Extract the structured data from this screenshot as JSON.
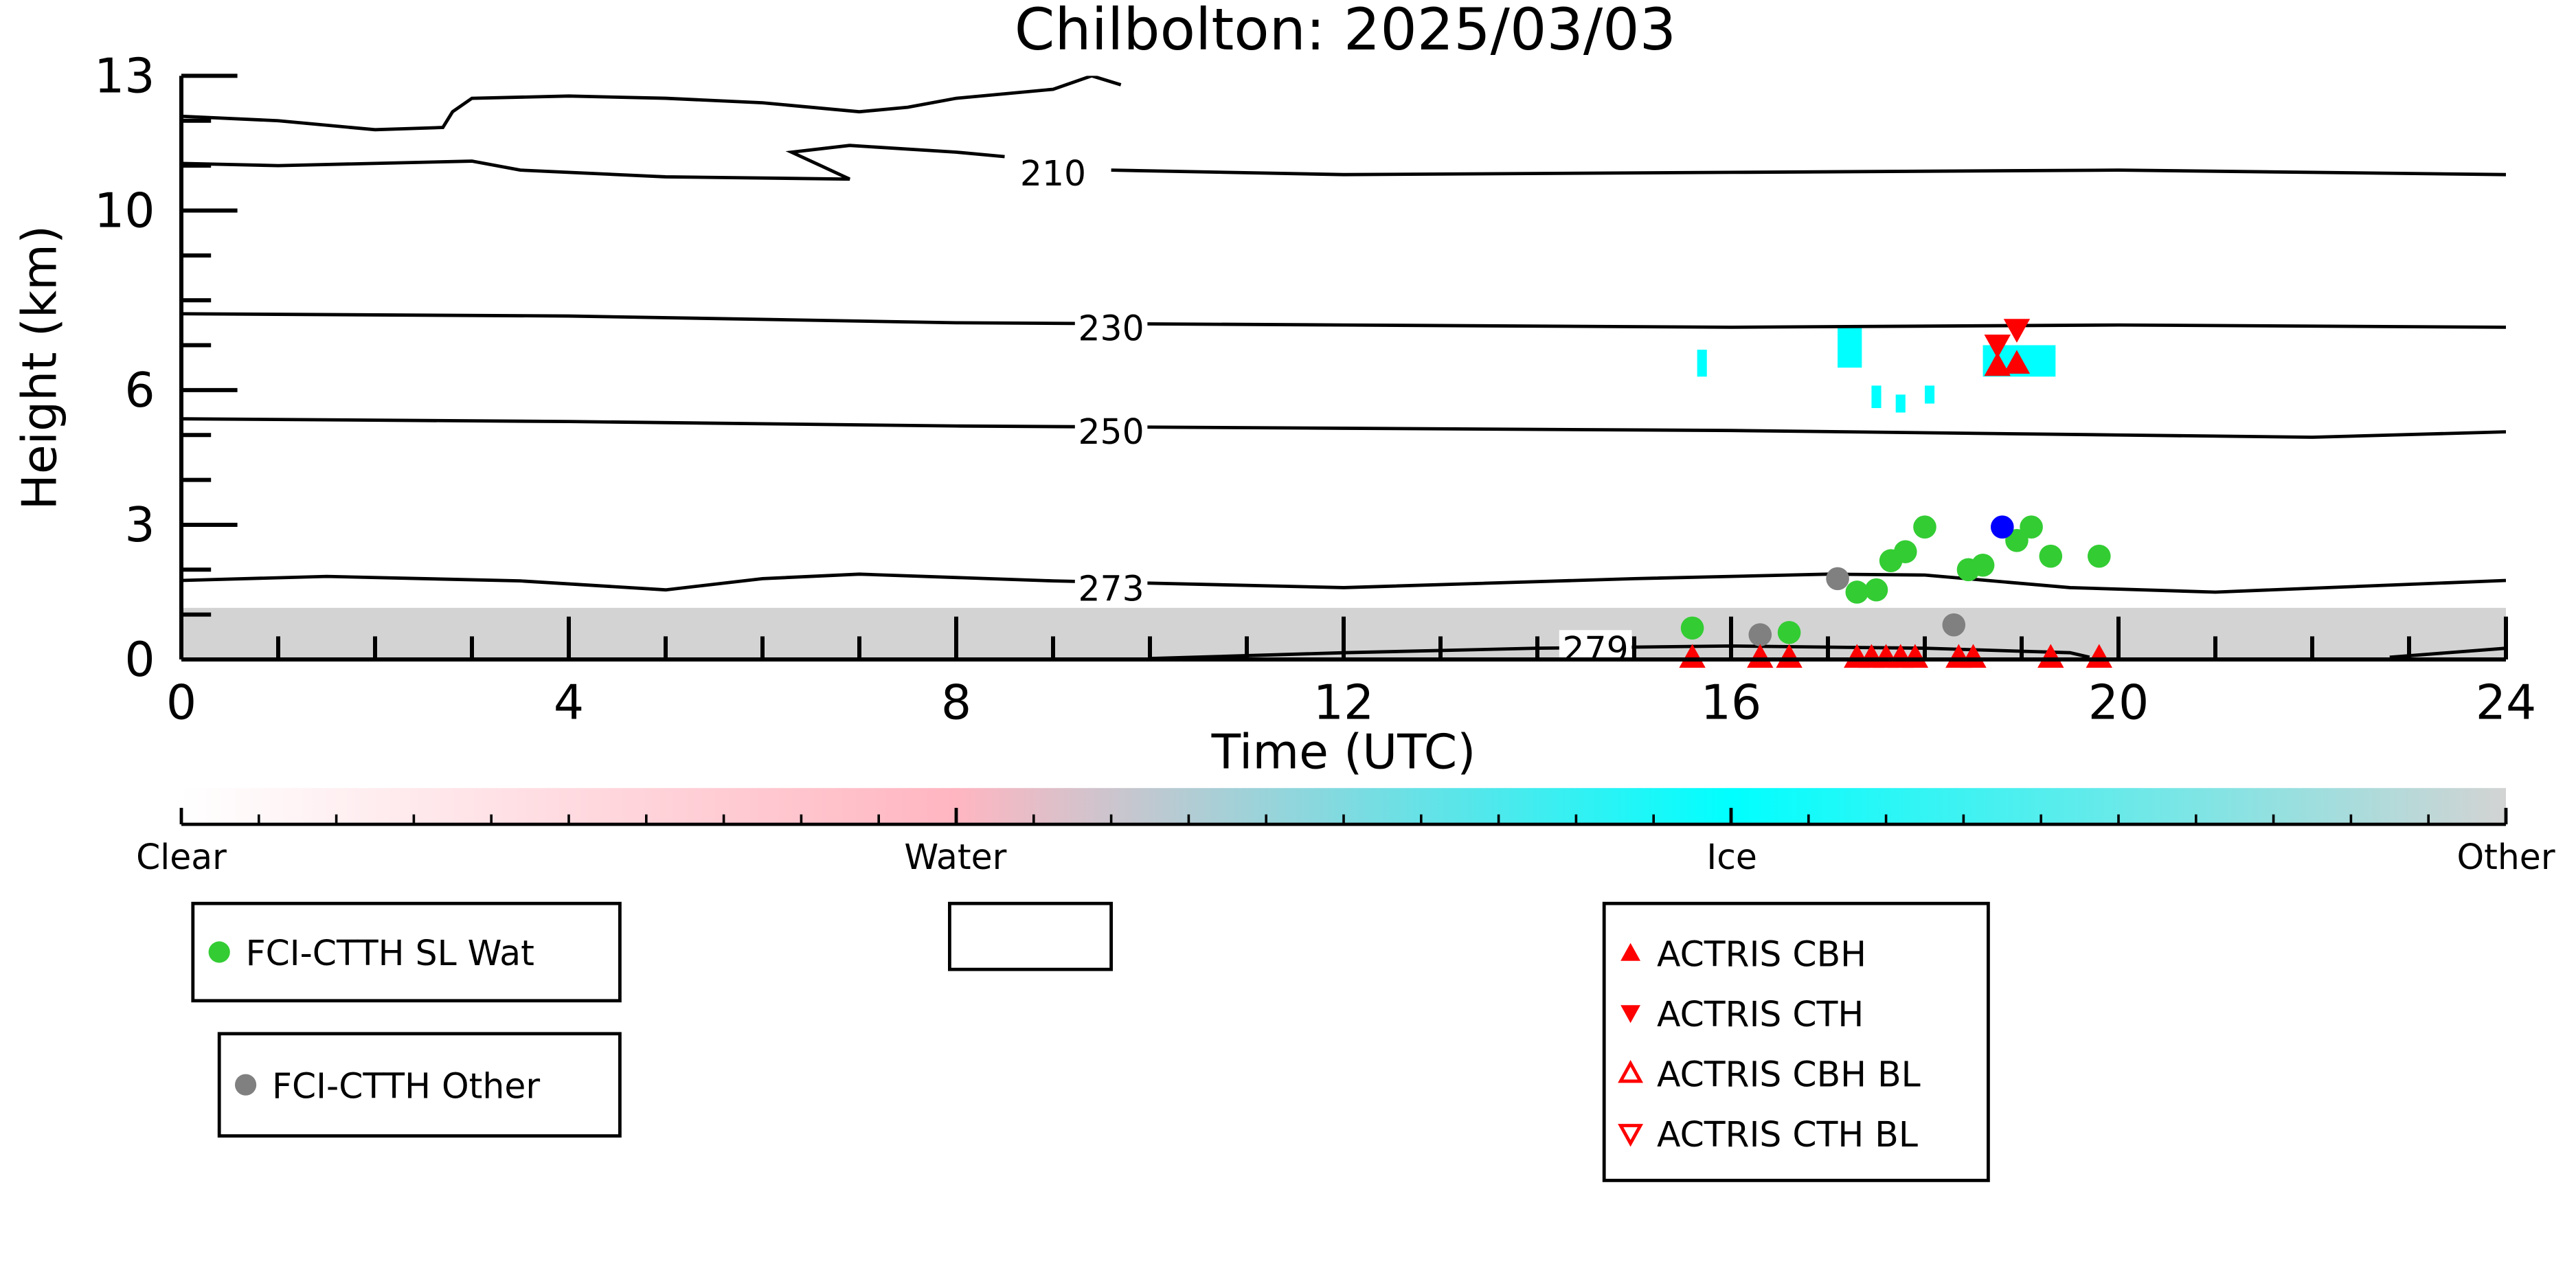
{
  "chart_data": {
    "type": "scatter",
    "title": "Chilbolton: 2025/03/03",
    "xlabel": "Time (UTC)",
    "ylabel": "Height (km)",
    "xlim": [
      0,
      24
    ],
    "ylim": [
      0,
      13
    ],
    "x_ticks": [
      0,
      4,
      8,
      12,
      16,
      20,
      24
    ],
    "x_tick_labels": [
      "0",
      "4",
      "8",
      "12",
      "16",
      "20",
      "24"
    ],
    "y_ticks": [
      0,
      3,
      6,
      10,
      13
    ],
    "y_tick_labels": [
      "0",
      "3",
      "6",
      "10",
      "13"
    ],
    "grid": false,
    "colors": {
      "sl_wat": "#33cc33",
      "other": "#808080",
      "blue": "#0000ff",
      "actris": "#ff0000",
      "ice": "#00ffff",
      "water": "#ffb6c1",
      "other_cloud": "#d3d3d3"
    },
    "contours": [
      {
        "label": "210",
        "label_at": [
          9.0,
          10.85
        ],
        "points": [
          [
            0,
            12.1
          ],
          [
            1,
            12.0
          ],
          [
            2,
            11.8
          ],
          [
            2.7,
            11.85
          ],
          [
            2.8,
            12.2
          ],
          [
            3,
            12.5
          ],
          [
            4,
            12.55
          ],
          [
            5,
            12.5
          ],
          [
            6,
            12.4
          ],
          [
            7,
            12.2
          ],
          [
            7.5,
            12.3
          ],
          [
            8,
            12.5
          ],
          [
            9,
            12.7
          ],
          [
            9.4,
            13.0
          ],
          [
            9.7,
            12.8
          ]
        ]
      },
      {
        "label": "",
        "label_at": null,
        "points": [
          [
            0,
            11.05
          ],
          [
            1,
            11.0
          ],
          [
            3,
            11.1
          ],
          [
            3.5,
            10.9
          ],
          [
            5,
            10.75
          ],
          [
            6.9,
            10.7
          ],
          [
            6.6,
            11.0
          ],
          [
            6.3,
            11.3
          ],
          [
            6.9,
            11.45
          ],
          [
            8,
            11.3
          ],
          [
            8.5,
            11.2
          ]
        ]
      },
      {
        "label": "",
        "label_at": null,
        "points": [
          [
            9.6,
            10.9
          ],
          [
            12,
            10.8
          ],
          [
            16,
            10.85
          ],
          [
            20,
            10.9
          ],
          [
            24,
            10.8
          ]
        ]
      },
      {
        "label": "230",
        "label_at": [
          9.6,
          7.4
        ],
        "points": [
          [
            0,
            7.7
          ],
          [
            4,
            7.65
          ],
          [
            8,
            7.5
          ],
          [
            12,
            7.45
          ],
          [
            16,
            7.4
          ],
          [
            20,
            7.45
          ],
          [
            24,
            7.4
          ]
        ]
      },
      {
        "label": "250",
        "label_at": [
          9.6,
          5.1
        ],
        "points": [
          [
            0,
            5.36
          ],
          [
            4,
            5.3
          ],
          [
            8,
            5.2
          ],
          [
            12,
            5.15
          ],
          [
            16,
            5.1
          ],
          [
            20,
            5.0
          ],
          [
            22,
            4.95
          ],
          [
            24,
            5.07
          ]
        ]
      },
      {
        "label": "273",
        "label_at": [
          9.6,
          1.6
        ],
        "points": [
          [
            0,
            1.76
          ],
          [
            1.5,
            1.85
          ],
          [
            3.5,
            1.75
          ],
          [
            5,
            1.55
          ],
          [
            6,
            1.8
          ],
          [
            7,
            1.9
          ],
          [
            9,
            1.75
          ],
          [
            12,
            1.6
          ],
          [
            15,
            1.8
          ],
          [
            17,
            1.9
          ],
          [
            18,
            1.88
          ],
          [
            19.5,
            1.6
          ],
          [
            21,
            1.5
          ],
          [
            24,
            1.76
          ]
        ]
      },
      {
        "label": "279",
        "label_at": [
          14.6,
          0.25
        ],
        "points": [
          [
            10,
            0.02
          ],
          [
            12,
            0.15
          ],
          [
            14,
            0.25
          ],
          [
            16,
            0.3
          ],
          [
            18,
            0.25
          ],
          [
            19.5,
            0.15
          ],
          [
            19.7,
            0.05
          ]
        ]
      },
      {
        "label": "",
        "label_at": null,
        "points": [
          [
            22.8,
            0.05
          ],
          [
            24,
            0.25
          ]
        ]
      }
    ],
    "cloud_regions": [
      {
        "phase": "Other",
        "t0": 0,
        "t1": 24,
        "h0": 0,
        "h1": 1.15
      },
      {
        "phase": "Ice",
        "t0": 15.65,
        "t1": 15.75,
        "h0": 6.3,
        "h1": 6.9
      },
      {
        "phase": "Ice",
        "t0": 17.1,
        "t1": 17.35,
        "h0": 6.5,
        "h1": 7.4
      },
      {
        "phase": "Ice",
        "t0": 17.45,
        "t1": 17.55,
        "h0": 5.6,
        "h1": 6.1
      },
      {
        "phase": "Ice",
        "t0": 17.7,
        "t1": 17.8,
        "h0": 5.5,
        "h1": 5.9
      },
      {
        "phase": "Ice",
        "t0": 18.0,
        "t1": 18.1,
        "h0": 5.7,
        "h1": 6.1
      },
      {
        "phase": "Ice",
        "t0": 18.6,
        "t1": 19.35,
        "h0": 6.3,
        "h1": 7.0
      }
    ],
    "series": [
      {
        "name": "FCI-CTTH SL Wat",
        "marker": "circle",
        "color_key": "sl_wat",
        "points": [
          [
            15.6,
            0.7
          ],
          [
            16.6,
            0.6
          ],
          [
            17.3,
            1.5
          ],
          [
            17.5,
            1.55
          ],
          [
            17.65,
            2.2
          ],
          [
            17.8,
            2.4
          ],
          [
            18.0,
            2.95
          ],
          [
            18.45,
            2.0
          ],
          [
            18.6,
            2.1
          ],
          [
            18.95,
            2.65
          ],
          [
            19.1,
            2.95
          ],
          [
            19.3,
            2.3
          ],
          [
            19.8,
            2.3
          ]
        ]
      },
      {
        "name": "FCI-CTTH Other",
        "marker": "circle",
        "color_key": "other",
        "points": [
          [
            16.3,
            0.55
          ],
          [
            17.1,
            1.8
          ],
          [
            18.3,
            0.77
          ]
        ]
      },
      {
        "name": "",
        "marker": "circle",
        "color_key": "blue",
        "points": [
          [
            18.8,
            2.95
          ]
        ]
      },
      {
        "name": "ACTRIS CBH",
        "marker": "triangle-up",
        "color_key": "actris",
        "points": [
          [
            18.75,
            6.55
          ],
          [
            18.95,
            6.6
          ],
          [
            15.6,
            0.05
          ],
          [
            16.3,
            0.05
          ],
          [
            16.6,
            0.05
          ],
          [
            17.3,
            0.05
          ],
          [
            17.45,
            0.05
          ],
          [
            17.6,
            0.05
          ],
          [
            17.75,
            0.05
          ],
          [
            17.9,
            0.05
          ],
          [
            18.35,
            0.05
          ],
          [
            18.5,
            0.05
          ],
          [
            19.3,
            0.05
          ],
          [
            19.8,
            0.05
          ]
        ]
      },
      {
        "name": "ACTRIS CTH",
        "marker": "triangle-down",
        "color_key": "actris",
        "points": [
          [
            18.75,
            7.0
          ],
          [
            18.95,
            7.35
          ]
        ]
      },
      {
        "name": "ACTRIS CBH BL",
        "marker": "triangle-up-open",
        "color_key": "actris",
        "points": []
      },
      {
        "name": "ACTRIS CTH BL",
        "marker": "triangle-down-open",
        "color_key": "actris",
        "points": []
      }
    ],
    "colorbar": {
      "labels": [
        "Clear",
        "Water",
        "Ice",
        "Other"
      ],
      "positions": [
        0,
        0.333,
        0.667,
        1
      ],
      "colors": [
        "#ffffff",
        "#ffb6c1",
        "#00ffff",
        "#d3d3d3"
      ]
    },
    "legends": [
      {
        "entries": [
          "FCI-CTTH SL Wat"
        ],
        "markers": [
          "circle"
        ],
        "colors": [
          "#33cc33"
        ]
      },
      {
        "entries": [
          "FCI-CTTH Other"
        ],
        "markers": [
          "circle"
        ],
        "colors": [
          "#808080"
        ]
      },
      {
        "entries": [],
        "markers": [],
        "colors": []
      },
      {
        "entries": [
          "ACTRIS CBH",
          "ACTRIS CTH",
          "ACTRIS CBH BL",
          "ACTRIS CTH BL"
        ],
        "markers": [
          "triangle-up",
          "triangle-down",
          "triangle-up-open",
          "triangle-down-open"
        ],
        "colors": [
          "#ff0000",
          "#ff0000",
          "#ff0000",
          "#ff0000"
        ]
      }
    ]
  }
}
